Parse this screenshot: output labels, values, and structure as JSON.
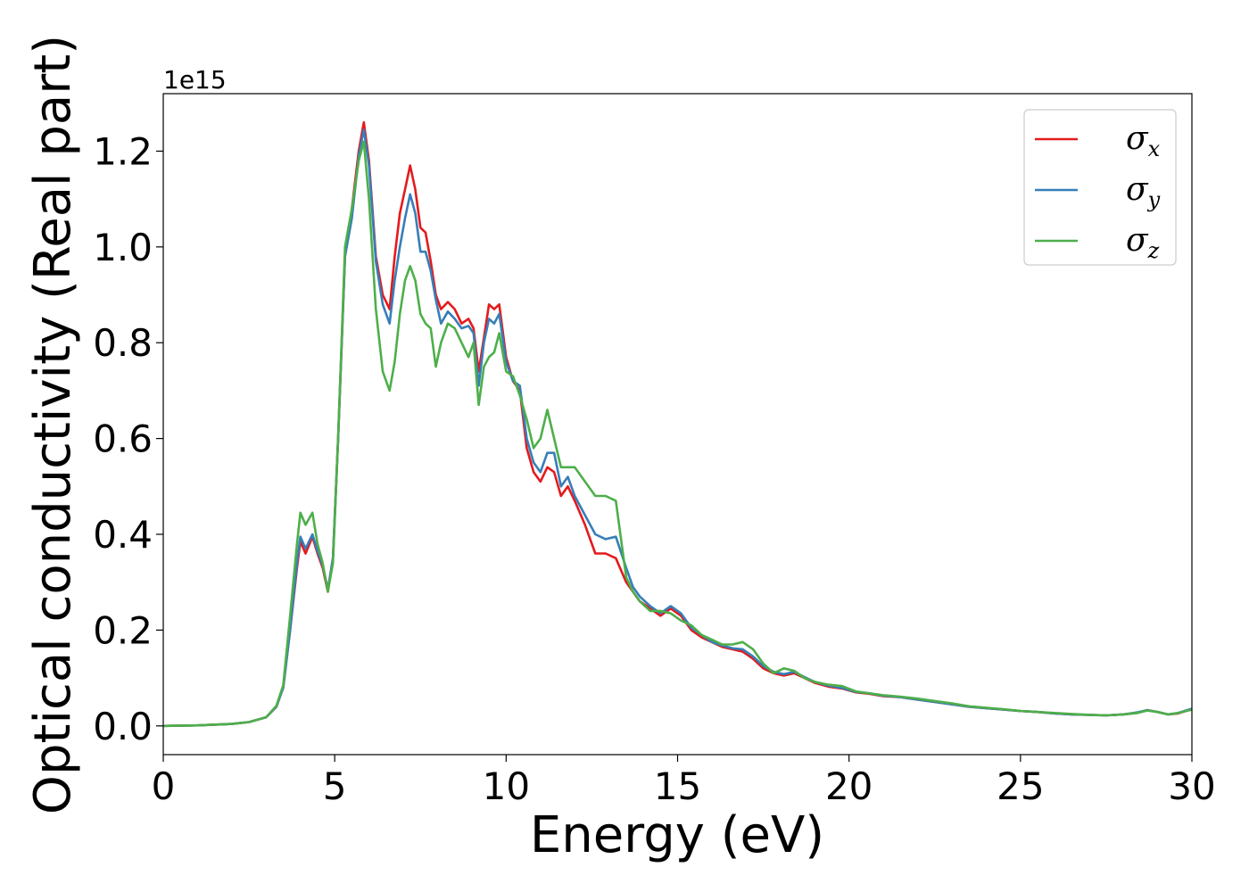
{
  "chart_data": {
    "type": "line",
    "title": "",
    "xlabel": "Energy (eV)",
    "ylabel": "Optical conductivity (Real part)",
    "y_offset_label": "1e15",
    "xlim": [
      0,
      30
    ],
    "ylim": [
      -0.06,
      1.32
    ],
    "xticks": [
      0,
      5,
      10,
      15,
      20,
      25,
      30
    ],
    "xtick_labels": [
      "0",
      "5",
      "10",
      "15",
      "20",
      "25",
      "30"
    ],
    "yticks": [
      0.0,
      0.2,
      0.4,
      0.6,
      0.8,
      1.0,
      1.2
    ],
    "ytick_labels": [
      "0.0",
      "0.2",
      "0.4",
      "0.6",
      "0.8",
      "1.0",
      "1.2"
    ],
    "grid": false,
    "legend_position": "top-right",
    "series": [
      {
        "name": "σx",
        "symbol": "σ",
        "subscript": "x",
        "color": "#e41a1c",
        "x": [
          0,
          1,
          2,
          2.5,
          3,
          3.3,
          3.5,
          3.7,
          3.9,
          4.0,
          4.15,
          4.35,
          4.5,
          4.65,
          4.8,
          4.95,
          5.1,
          5.3,
          5.5,
          5.7,
          5.85,
          6.0,
          6.2,
          6.4,
          6.6,
          6.75,
          6.9,
          7.05,
          7.2,
          7.35,
          7.5,
          7.65,
          7.8,
          7.95,
          8.1,
          8.3,
          8.5,
          8.7,
          8.9,
          9.05,
          9.2,
          9.35,
          9.5,
          9.65,
          9.8,
          10.0,
          10.2,
          10.4,
          10.6,
          10.8,
          11.0,
          11.2,
          11.4,
          11.6,
          11.8,
          12.0,
          12.3,
          12.6,
          12.9,
          13.2,
          13.5,
          13.7,
          13.9,
          14.2,
          14.5,
          14.8,
          15.1,
          15.4,
          15.7,
          16.0,
          16.3,
          16.6,
          16.9,
          17.2,
          17.5,
          17.8,
          18.1,
          18.4,
          18.7,
          19.0,
          19.4,
          19.8,
          20.2,
          20.6,
          21.0,
          21.5,
          22.0,
          22.5,
          23.0,
          23.5,
          24.0,
          24.5,
          25.0,
          25.5,
          26.0,
          26.5,
          27.0,
          27.5,
          28.0,
          28.4,
          28.7,
          29.0,
          29.3,
          29.6,
          30.0
        ],
        "y": [
          0,
          0.001,
          0.004,
          0.008,
          0.018,
          0.04,
          0.08,
          0.2,
          0.33,
          0.385,
          0.36,
          0.395,
          0.36,
          0.33,
          0.28,
          0.35,
          0.6,
          0.98,
          1.08,
          1.2,
          1.26,
          1.18,
          0.98,
          0.9,
          0.87,
          0.98,
          1.07,
          1.12,
          1.17,
          1.12,
          1.04,
          1.03,
          0.97,
          0.9,
          0.87,
          0.885,
          0.87,
          0.84,
          0.85,
          0.83,
          0.74,
          0.81,
          0.88,
          0.87,
          0.88,
          0.77,
          0.72,
          0.7,
          0.58,
          0.53,
          0.51,
          0.54,
          0.53,
          0.48,
          0.5,
          0.47,
          0.42,
          0.36,
          0.36,
          0.35,
          0.3,
          0.28,
          0.26,
          0.245,
          0.23,
          0.245,
          0.23,
          0.2,
          0.185,
          0.175,
          0.165,
          0.16,
          0.155,
          0.14,
          0.12,
          0.11,
          0.105,
          0.11,
          0.1,
          0.09,
          0.082,
          0.078,
          0.07,
          0.067,
          0.062,
          0.06,
          0.055,
          0.05,
          0.045,
          0.04,
          0.037,
          0.034,
          0.031,
          0.029,
          0.026,
          0.024,
          0.023,
          0.022,
          0.024,
          0.027,
          0.033,
          0.029,
          0.024,
          0.026,
          0.035
        ]
      },
      {
        "name": "σy",
        "symbol": "σ",
        "subscript": "y",
        "color": "#377eb8",
        "x": [
          0,
          1,
          2,
          2.5,
          3,
          3.3,
          3.5,
          3.7,
          3.9,
          4.0,
          4.15,
          4.35,
          4.5,
          4.65,
          4.8,
          4.95,
          5.1,
          5.3,
          5.5,
          5.7,
          5.85,
          6.0,
          6.2,
          6.4,
          6.6,
          6.75,
          6.9,
          7.05,
          7.2,
          7.35,
          7.5,
          7.65,
          7.8,
          7.95,
          8.1,
          8.3,
          8.5,
          8.7,
          8.9,
          9.05,
          9.2,
          9.35,
          9.5,
          9.65,
          9.8,
          10.0,
          10.2,
          10.4,
          10.6,
          10.8,
          11.0,
          11.2,
          11.4,
          11.6,
          11.8,
          12.0,
          12.3,
          12.6,
          12.9,
          13.2,
          13.5,
          13.7,
          13.9,
          14.2,
          14.5,
          14.8,
          15.1,
          15.4,
          15.7,
          16.0,
          16.3,
          16.6,
          16.9,
          17.2,
          17.5,
          17.8,
          18.1,
          18.4,
          18.7,
          19.0,
          19.4,
          19.8,
          20.2,
          20.6,
          21.0,
          21.5,
          22.0,
          22.5,
          23.0,
          23.5,
          24.0,
          24.5,
          25.0,
          25.5,
          26.0,
          26.5,
          27.0,
          27.5,
          28.0,
          28.4,
          28.7,
          29.0,
          29.3,
          29.6,
          30.0
        ],
        "y": [
          0,
          0.001,
          0.004,
          0.008,
          0.018,
          0.04,
          0.08,
          0.2,
          0.34,
          0.395,
          0.37,
          0.4,
          0.365,
          0.335,
          0.285,
          0.35,
          0.6,
          0.98,
          1.06,
          1.19,
          1.245,
          1.17,
          0.97,
          0.88,
          0.84,
          0.93,
          1.0,
          1.06,
          1.11,
          1.07,
          0.99,
          0.99,
          0.95,
          0.89,
          0.84,
          0.865,
          0.85,
          0.83,
          0.835,
          0.82,
          0.71,
          0.8,
          0.85,
          0.84,
          0.86,
          0.76,
          0.72,
          0.71,
          0.6,
          0.55,
          0.53,
          0.57,
          0.57,
          0.5,
          0.52,
          0.48,
          0.44,
          0.4,
          0.39,
          0.395,
          0.33,
          0.29,
          0.27,
          0.25,
          0.235,
          0.25,
          0.235,
          0.205,
          0.19,
          0.175,
          0.168,
          0.162,
          0.16,
          0.145,
          0.125,
          0.113,
          0.108,
          0.113,
          0.102,
          0.092,
          0.084,
          0.079,
          0.071,
          0.068,
          0.063,
          0.06,
          0.055,
          0.05,
          0.045,
          0.04,
          0.037,
          0.034,
          0.031,
          0.029,
          0.026,
          0.024,
          0.023,
          0.022,
          0.024,
          0.028,
          0.033,
          0.029,
          0.024,
          0.027,
          0.036
        ]
      },
      {
        "name": "σz",
        "symbol": "σ",
        "subscript": "z",
        "color": "#4daf4a",
        "x": [
          0,
          1,
          2,
          2.5,
          3,
          3.3,
          3.5,
          3.7,
          3.9,
          4.0,
          4.15,
          4.35,
          4.5,
          4.65,
          4.8,
          4.95,
          5.1,
          5.3,
          5.5,
          5.7,
          5.85,
          6.0,
          6.2,
          6.4,
          6.6,
          6.75,
          6.9,
          7.05,
          7.2,
          7.35,
          7.5,
          7.65,
          7.8,
          7.95,
          8.1,
          8.3,
          8.5,
          8.7,
          8.9,
          9.05,
          9.2,
          9.35,
          9.5,
          9.65,
          9.8,
          10.0,
          10.2,
          10.4,
          10.6,
          10.8,
          11.0,
          11.2,
          11.4,
          11.6,
          11.8,
          12.0,
          12.3,
          12.6,
          12.9,
          13.2,
          13.5,
          13.7,
          13.9,
          14.2,
          14.5,
          14.8,
          15.1,
          15.4,
          15.7,
          16.0,
          16.3,
          16.6,
          16.9,
          17.2,
          17.5,
          17.8,
          18.1,
          18.4,
          18.7,
          19.0,
          19.4,
          19.8,
          20.2,
          20.6,
          21.0,
          21.5,
          22.0,
          22.5,
          23.0,
          23.5,
          24.0,
          24.5,
          25.0,
          25.5,
          26.0,
          26.5,
          27.0,
          27.5,
          28.0,
          28.4,
          28.7,
          29.0,
          29.3,
          29.6,
          30.0
        ],
        "y": [
          0,
          0.001,
          0.004,
          0.008,
          0.018,
          0.042,
          0.085,
          0.23,
          0.38,
          0.445,
          0.42,
          0.445,
          0.38,
          0.34,
          0.28,
          0.34,
          0.6,
          1.0,
          1.08,
          1.18,
          1.22,
          1.1,
          0.87,
          0.74,
          0.7,
          0.76,
          0.86,
          0.93,
          0.96,
          0.93,
          0.86,
          0.84,
          0.83,
          0.75,
          0.8,
          0.84,
          0.83,
          0.8,
          0.77,
          0.8,
          0.67,
          0.75,
          0.77,
          0.78,
          0.82,
          0.74,
          0.73,
          0.69,
          0.64,
          0.58,
          0.6,
          0.66,
          0.6,
          0.54,
          0.54,
          0.54,
          0.51,
          0.48,
          0.48,
          0.47,
          0.31,
          0.28,
          0.26,
          0.24,
          0.24,
          0.235,
          0.22,
          0.21,
          0.19,
          0.18,
          0.17,
          0.17,
          0.175,
          0.16,
          0.13,
          0.11,
          0.12,
          0.115,
          0.1,
          0.092,
          0.086,
          0.083,
          0.072,
          0.068,
          0.064,
          0.061,
          0.057,
          0.052,
          0.047,
          0.041,
          0.038,
          0.035,
          0.031,
          0.029,
          0.027,
          0.025,
          0.023,
          0.022,
          0.024,
          0.027,
          0.032,
          0.029,
          0.024,
          0.027,
          0.034
        ]
      }
    ]
  }
}
